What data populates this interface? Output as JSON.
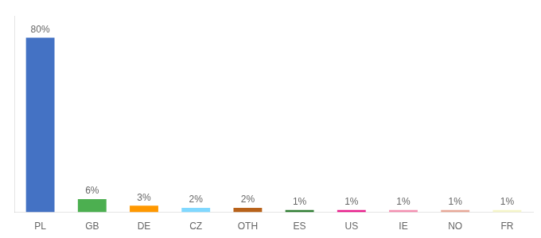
{
  "chart_data": {
    "type": "bar",
    "categories": [
      "PL",
      "GB",
      "DE",
      "CZ",
      "OTH",
      "ES",
      "US",
      "IE",
      "NO",
      "FR"
    ],
    "values": [
      80,
      6,
      3,
      2,
      2,
      1,
      1,
      1,
      1,
      1
    ],
    "value_labels": [
      "80%",
      "6%",
      "3%",
      "2%",
      "2%",
      "1%",
      "1%",
      "1%",
      "1%",
      "1%"
    ],
    "colors": [
      "#4472c4",
      "#4caf50",
      "#ff9800",
      "#80d8ff",
      "#b8621a",
      "#2e7d32",
      "#e91e8c",
      "#f48fb1",
      "#e8a898",
      "#f5f5c8"
    ],
    "ylim": [
      0,
      90
    ],
    "grid": false,
    "data_labels": true,
    "tick_labels": "x"
  }
}
